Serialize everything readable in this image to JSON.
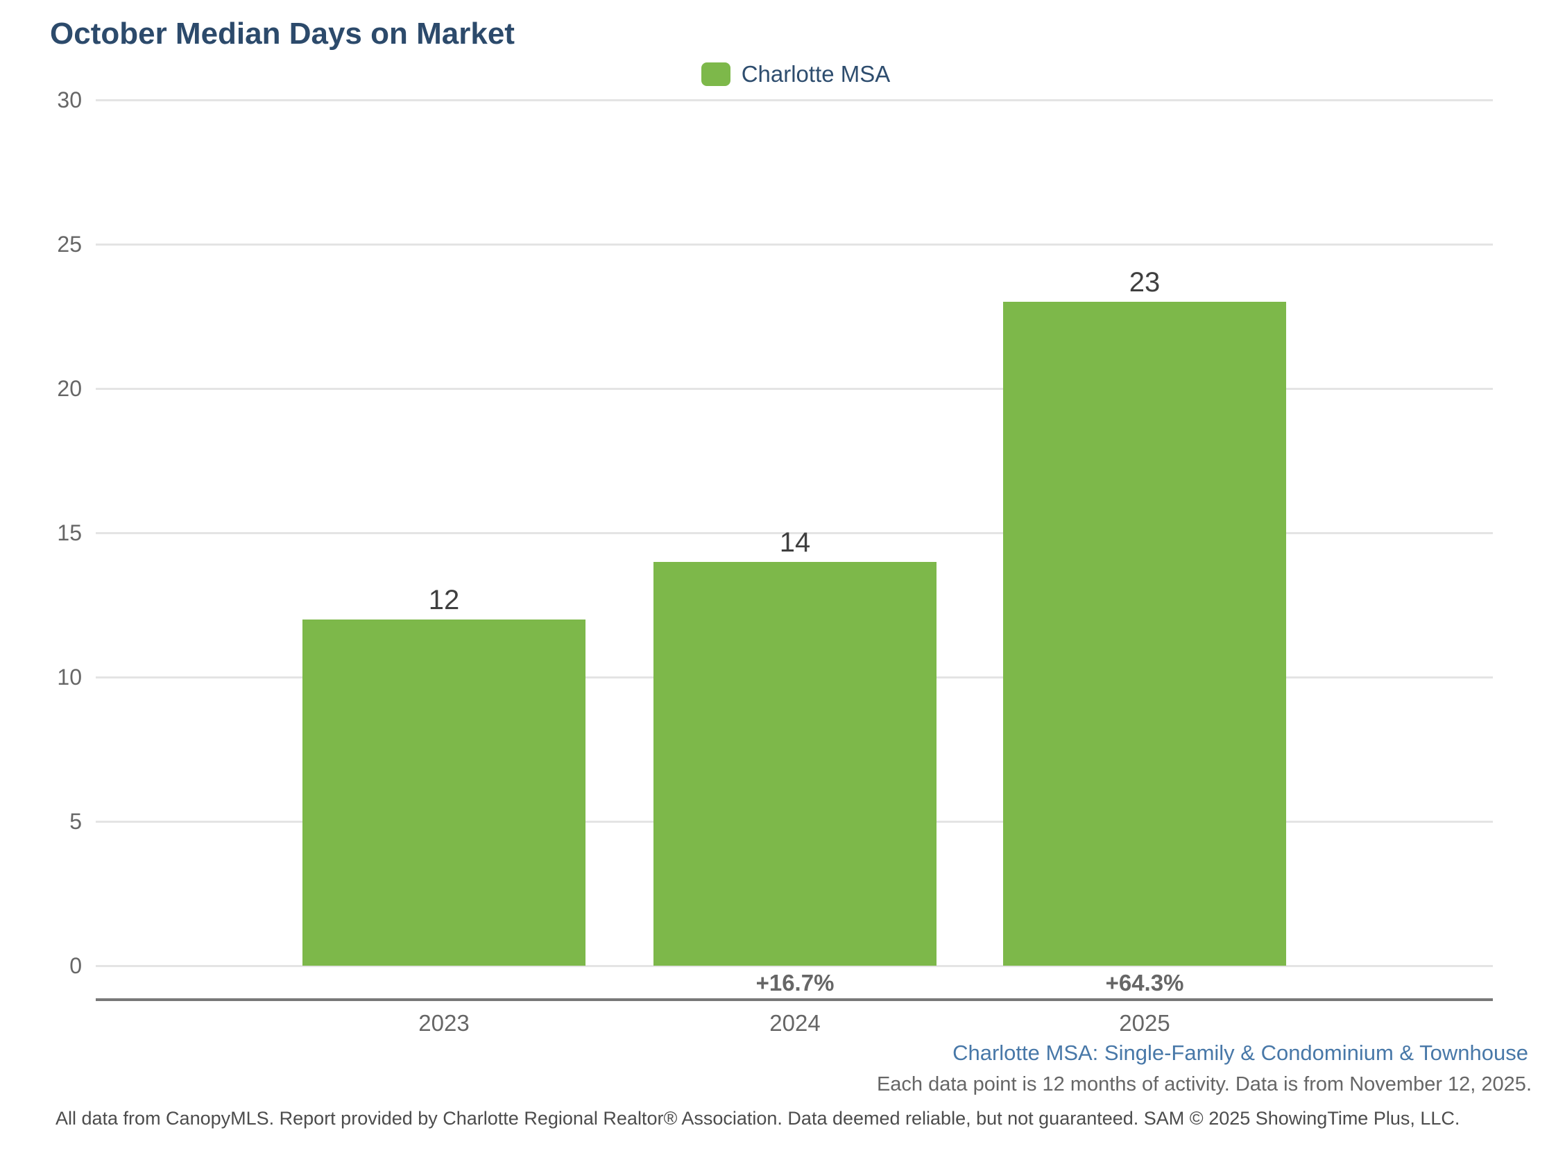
{
  "page": {
    "title": "October Median Days on Market"
  },
  "legend": {
    "items": [
      {
        "label": "Charlotte MSA",
        "color": "#7db84a"
      }
    ]
  },
  "chart_data": {
    "type": "bar",
    "title": "October Median Days on Market",
    "categories": [
      "2023",
      "2024",
      "2025"
    ],
    "series": [
      {
        "name": "Charlotte MSA",
        "color": "#7db84a",
        "values": [
          12,
          14,
          23
        ]
      }
    ],
    "data_labels": [
      "12",
      "14",
      "23"
    ],
    "change_labels": [
      "",
      "+16.7%",
      "+64.3%"
    ],
    "yticks": [
      0,
      5,
      10,
      15,
      20,
      25,
      30
    ],
    "ylim": [
      0,
      30
    ],
    "grid": true,
    "legend_position": "top-center",
    "xlabel": "",
    "ylabel": ""
  },
  "footer": {
    "subtitle": "Charlotte MSA: Single-Family & Condominium & Townhouse",
    "note": "Each data point is 12 months of activity. Data is from November 12, 2025.",
    "disclaimer": "All data from CanopyMLS. Report provided by Charlotte Regional Realtor® Association. Data deemed reliable, but not guaranteed. SAM © 2025 ShowingTime Plus, LLC."
  },
  "colors": {
    "bar": "#7db84a",
    "title": "#2c4a6b",
    "legend_text": "#2e4d6e",
    "subtitle_link": "#4878a8",
    "axis_text": "#666666",
    "value_label": "#3f3f3f",
    "gridline": "#e4e4e4",
    "axis_line": "#787878",
    "disclaimer_text": "#4c4c4c"
  }
}
